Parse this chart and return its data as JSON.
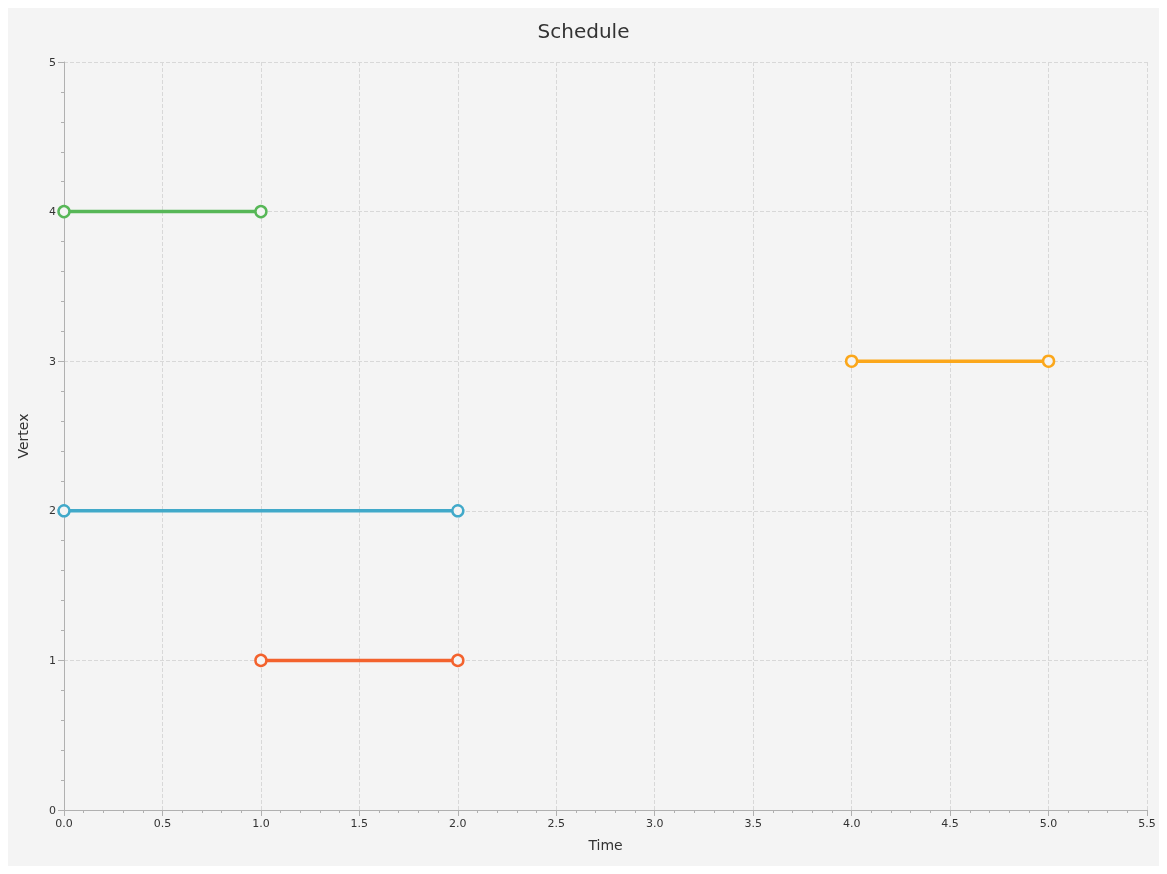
{
  "chart_data": {
    "type": "line",
    "title": "Schedule",
    "xlabel": "Time",
    "ylabel": "Vertex",
    "series": [
      {
        "color": "#f3622d",
        "x": [
          1,
          2
        ],
        "values": [
          1,
          1
        ]
      },
      {
        "color": "#fba71b",
        "x": [
          4,
          5
        ],
        "values": [
          3,
          3
        ]
      },
      {
        "color": "#57b757",
        "x": [
          0,
          1
        ],
        "values": [
          4,
          4
        ]
      },
      {
        "color": "#41a9c9",
        "x": [
          0,
          2
        ],
        "values": [
          2,
          2
        ]
      }
    ],
    "xlim": [
      0,
      5.5
    ],
    "xticks": [
      {
        "value": 0,
        "label": "0.0"
      },
      0.5,
      {
        "value": 1,
        "label": "1.0"
      },
      1.5,
      {
        "value": 2,
        "label": "2.0"
      },
      2.5,
      {
        "value": 3,
        "label": "3.0"
      },
      3.5,
      {
        "value": 4,
        "label": "4.0"
      },
      4.5,
      {
        "value": 5,
        "label": "5.0"
      },
      5.5
    ],
    "ylim": [
      0,
      5
    ],
    "yticks": [
      0,
      1,
      2,
      3,
      4,
      5
    ],
    "grid": true,
    "marker": "circle"
  }
}
